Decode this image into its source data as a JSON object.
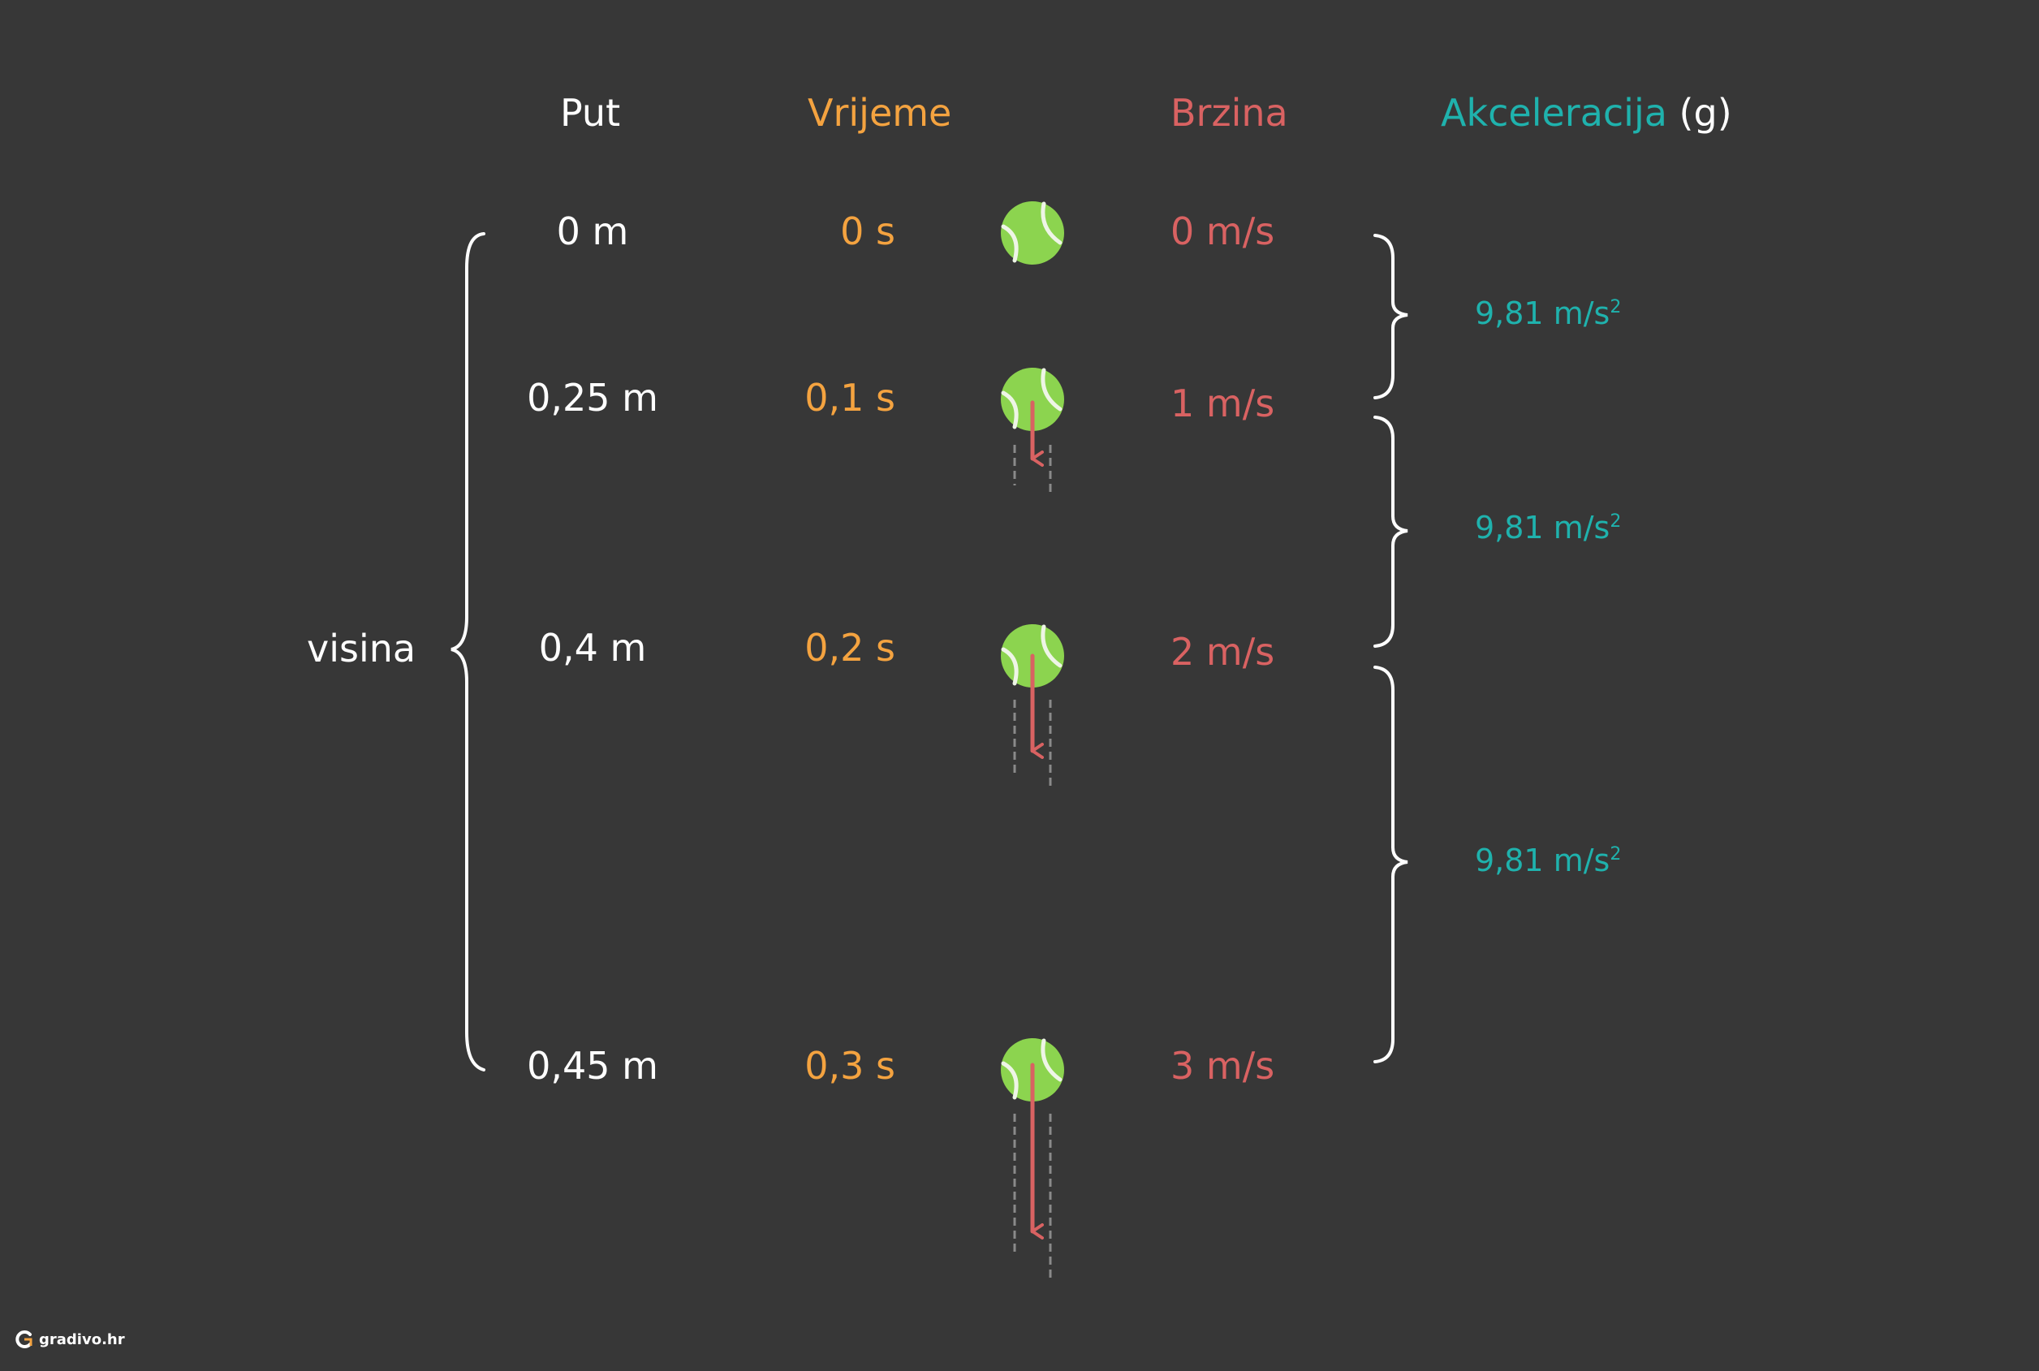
{
  "headers": {
    "distance": "Put",
    "time": "Vrijeme",
    "speed": "Brzina",
    "acceleration": "Akceleracija",
    "acceleration_symbol": "(g)"
  },
  "rows": [
    {
      "distance": "0 m",
      "time": "0 s",
      "speed": "0 m/s"
    },
    {
      "distance": "0,25 m",
      "time": "0,1 s",
      "speed": "1 m/s"
    },
    {
      "distance": "0,4 m",
      "time": "0,2 s",
      "speed": "2 m/s"
    },
    {
      "distance": "0,45 m",
      "time": "0,3 s",
      "speed": "3 m/s"
    }
  ],
  "height_label": "visina",
  "accelerations": [
    {
      "value": "9,81 m/s",
      "exp": "2"
    },
    {
      "value": "9,81 m/s",
      "exp": "2"
    },
    {
      "value": "9,81 m/s",
      "exp": "2"
    }
  ],
  "logo_text": "gradivo.hr",
  "icons": [
    "tennis-ball-icon",
    "down-arrow-icon",
    "brace-icon",
    "gradivo-logo-icon"
  ],
  "colors": {
    "background": "#373737",
    "distance": "#ffffff",
    "time": "#f4a340",
    "speed": "#d96262",
    "acceleration": "#1fb2ad",
    "ball": "#8cd44f",
    "arrow": "#d96262"
  }
}
